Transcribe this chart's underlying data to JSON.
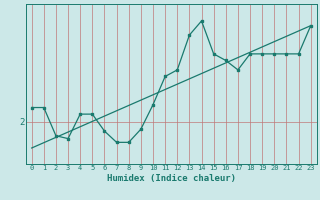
{
  "title": "",
  "xlabel": "Humidex (Indice chaleur)",
  "bg_color": "#cce8e8",
  "line_color": "#1a7a6e",
  "grid_x_color": "#c07878",
  "grid_y_color": "#c07878",
  "xlim": [
    -0.5,
    23.5
  ],
  "ylim": [
    1.55,
    3.25
  ],
  "xticks": [
    0,
    1,
    2,
    3,
    4,
    5,
    6,
    7,
    8,
    9,
    10,
    11,
    12,
    13,
    14,
    15,
    16,
    17,
    18,
    19,
    20,
    21,
    22,
    23
  ],
  "ytick_val": 2.0,
  "ytick_label": "2",
  "humidex_x": [
    0,
    1,
    2,
    3,
    4,
    5,
    6,
    7,
    8,
    9,
    10,
    11,
    12,
    13,
    14,
    15,
    16,
    17,
    18,
    19,
    20,
    21,
    22,
    23
  ],
  "curve_y": [
    2.15,
    2.15,
    1.85,
    1.82,
    2.08,
    2.08,
    1.9,
    1.78,
    1.78,
    1.92,
    2.18,
    2.48,
    2.55,
    2.92,
    3.07,
    2.72,
    2.65,
    2.55,
    2.72,
    2.72,
    2.72,
    2.72,
    2.72,
    3.02
  ],
  "trend_x": [
    0,
    23
  ],
  "trend_y": [
    1.72,
    3.02
  ],
  "xlabel_fontsize": 6.5,
  "tick_fontsize": 5.0
}
